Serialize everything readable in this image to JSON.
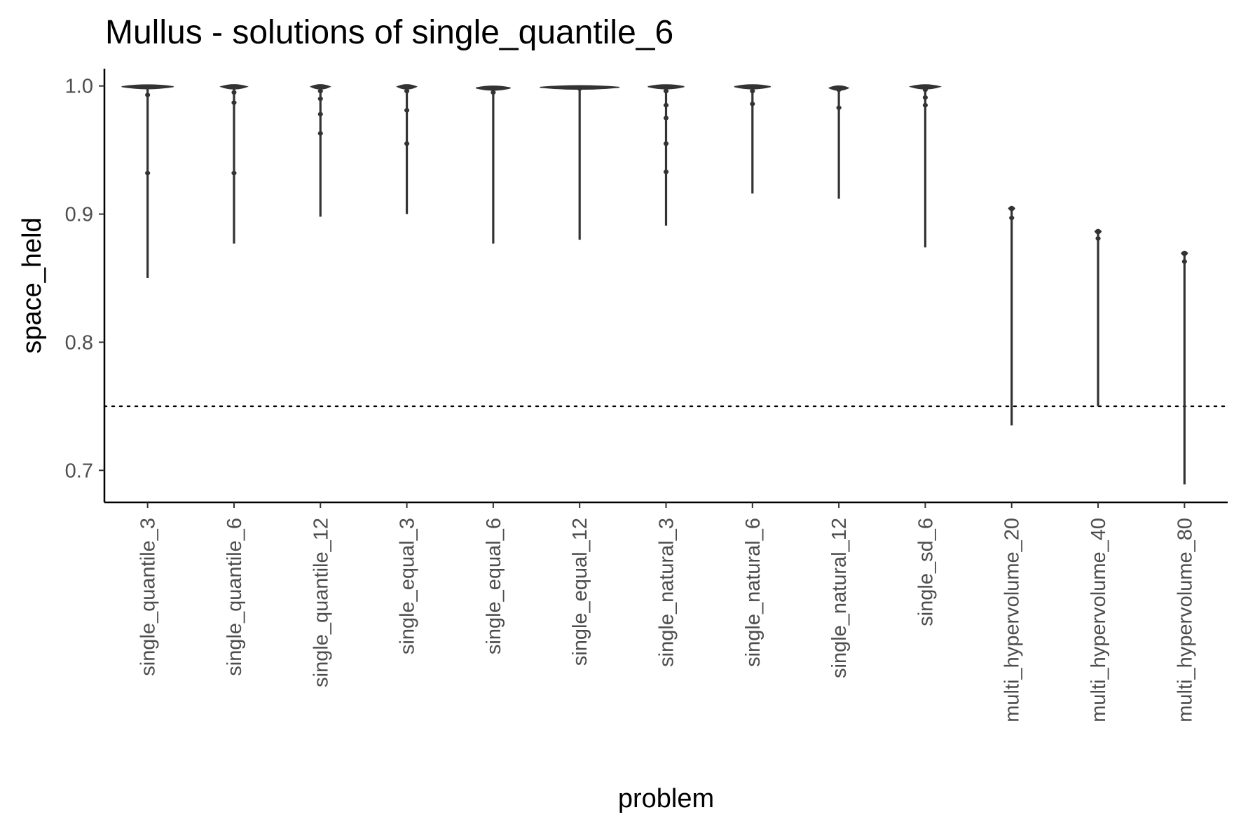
{
  "chart_data": {
    "type": "violin",
    "title": "Mullus - solutions of single_quantile_6",
    "xlabel": "problem",
    "ylabel": "space_held",
    "ylim": [
      0.675,
      1.0135
    ],
    "yticks": [
      0.7,
      0.8,
      0.9,
      1.0
    ],
    "ytick_labels": [
      "0.7",
      "0.8",
      "0.9",
      "1.0"
    ],
    "reference_line": {
      "y": 0.75,
      "style": "dotted"
    },
    "grid": false,
    "legend": "none",
    "colors": {
      "violin": "#333333",
      "axis": "#000000",
      "tick_label": "#4d4d4d"
    },
    "categories": [
      "single_quantile_3",
      "single_quantile_6",
      "single_quantile_12",
      "single_equal_3",
      "single_equal_6",
      "single_equal_12",
      "single_natural_3",
      "single_natural_6",
      "single_natural_12",
      "single_sd_6",
      "multi_hypervolume_20",
      "multi_hypervolume_40",
      "multi_hypervolume_80"
    ],
    "series": [
      {
        "category": "single_quantile_3",
        "min": 0.85,
        "max": 1.0,
        "head_width": 0.6,
        "blobs": [
          0.993,
          0.932
        ]
      },
      {
        "category": "single_quantile_6",
        "min": 0.877,
        "max": 1.0,
        "head_width": 0.3,
        "blobs": [
          0.995,
          0.987,
          0.932
        ]
      },
      {
        "category": "single_quantile_12",
        "min": 0.898,
        "max": 1.0,
        "head_width": 0.22,
        "blobs": [
          0.996,
          0.99,
          0.978,
          0.963
        ]
      },
      {
        "category": "single_equal_3",
        "min": 0.9,
        "max": 1.0,
        "head_width": 0.22,
        "blobs": [
          0.996,
          0.981,
          0.955
        ]
      },
      {
        "category": "single_equal_6",
        "min": 0.877,
        "max": 0.999,
        "head_width": 0.4,
        "blobs": [
          0.995
        ]
      },
      {
        "category": "single_equal_12",
        "min": 0.88,
        "max": 0.9995,
        "head_width": 0.92,
        "blobs": [
          0.998
        ]
      },
      {
        "category": "single_natural_3",
        "min": 0.891,
        "max": 1.0,
        "head_width": 0.42,
        "blobs": [
          0.996,
          0.985,
          0.975,
          0.955,
          0.933
        ]
      },
      {
        "category": "single_natural_6",
        "min": 0.916,
        "max": 1.0,
        "head_width": 0.42,
        "blobs": [
          0.996,
          0.986
        ]
      },
      {
        "category": "single_natural_12",
        "min": 0.912,
        "max": 0.999,
        "head_width": 0.22,
        "blobs": [
          0.997,
          0.983
        ]
      },
      {
        "category": "single_sd_6",
        "min": 0.874,
        "max": 1.0,
        "head_width": 0.34,
        "blobs": [
          0.997,
          0.991,
          0.985
        ]
      },
      {
        "category": "multi_hypervolume_20",
        "min": 0.735,
        "max": 0.905,
        "head_width": 0.07,
        "blobs": [
          0.897
        ]
      },
      {
        "category": "multi_hypervolume_40",
        "min": 0.75,
        "max": 0.887,
        "head_width": 0.07,
        "blobs": [
          0.881
        ]
      },
      {
        "category": "multi_hypervolume_80",
        "min": 0.689,
        "max": 0.87,
        "head_width": 0.07,
        "blobs": [
          0.863
        ]
      }
    ]
  }
}
